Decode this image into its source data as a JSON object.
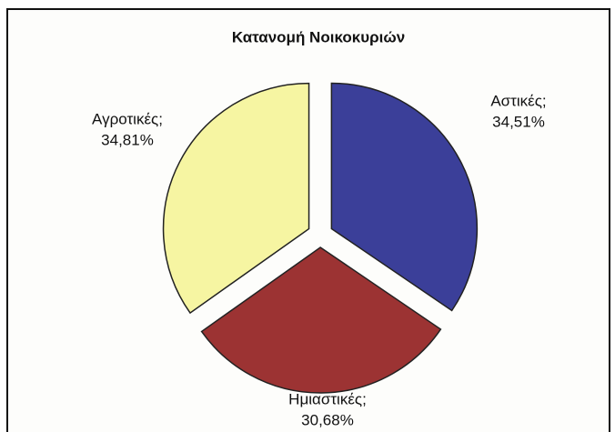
{
  "chart_data": {
    "type": "pie",
    "title": "Κατανομή Νοικοκυριών",
    "categories": [
      "Αστικές;",
      "Ημιαστικές;",
      "Αγροτικές;"
    ],
    "values": [
      34.51,
      30.68,
      34.81
    ],
    "value_labels": [
      "34,51%",
      "30,68%",
      "34,81%"
    ],
    "colors": [
      "#3b3f99",
      "#9c3333",
      "#f6f5a2"
    ]
  }
}
